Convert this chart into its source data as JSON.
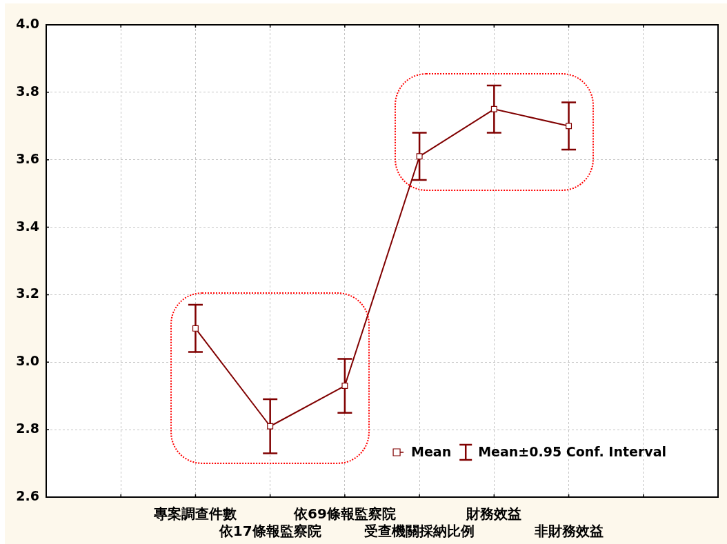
{
  "chart_data": {
    "type": "line",
    "categories": [
      null,
      null,
      "專案調查件數",
      "依17條報監察院",
      "依69條報監察院",
      "受查機關採納比例",
      "財務效益",
      "非財務效益",
      null,
      null
    ],
    "series": [
      {
        "name": "Mean",
        "color": "#800000",
        "values": [
          null,
          null,
          3.1,
          2.81,
          2.93,
          3.61,
          3.75,
          3.7,
          null,
          null
        ],
        "errors": [
          null,
          null,
          [
            3.03,
            3.17
          ],
          [
            2.73,
            2.89
          ],
          [
            2.85,
            3.01
          ],
          [
            3.54,
            3.68
          ],
          [
            3.68,
            3.82
          ],
          [
            3.63,
            3.77
          ],
          null,
          null
        ]
      }
    ],
    "ylim": [
      2.6,
      4.0
    ],
    "yticks": [
      2.6,
      2.8,
      {
        "value": 3,
        "label": "3.0"
      },
      3.2,
      3.4,
      3.6,
      3.8,
      {
        "value": 4,
        "label": "4.0"
      }
    ],
    "grid": true,
    "legend": "bottom right",
    "marker": "square",
    "line_style": "solid",
    "annotations": [
      "Mean±0.95 Conf. Interval"
    ]
  }
}
